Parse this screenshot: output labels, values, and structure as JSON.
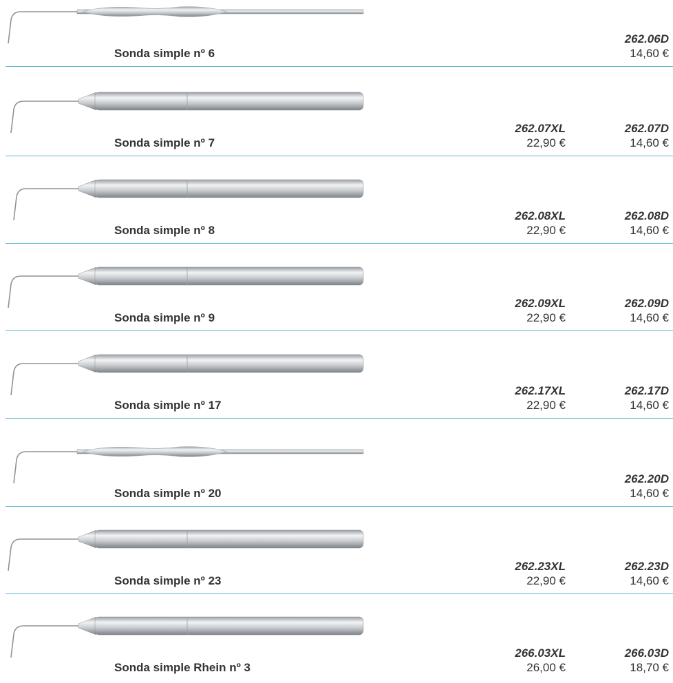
{
  "items": [
    {
      "name": "Sonda simple nº 6",
      "d": {
        "code": "262.06D",
        "price": "14,60 €"
      }
    },
    {
      "name": "Sonda simple nº 7",
      "xl": {
        "code": "262.07XL",
        "price": "22,90 €"
      },
      "d": {
        "code": "262.07D",
        "price": "14,60 €"
      }
    },
    {
      "name": "Sonda simple nº 8",
      "xl": {
        "code": "262.08XL",
        "price": "22,90 €"
      },
      "d": {
        "code": "262.08D",
        "price": "14,60 €"
      }
    },
    {
      "name": "Sonda simple nº 9",
      "xl": {
        "code": "262.09XL",
        "price": "22,90 €"
      },
      "d": {
        "code": "262.09D",
        "price": "14,60 €"
      }
    },
    {
      "name": "Sonda simple nº 17",
      "xl": {
        "code": "262.17XL",
        "price": "22,90 €"
      },
      "d": {
        "code": "262.17D",
        "price": "14,60 €"
      }
    },
    {
      "name": "Sonda simple nº 20",
      "d": {
        "code": "262.20D",
        "price": "14,60 €"
      }
    },
    {
      "name": "Sonda simple nº 23",
      "xl": {
        "code": "262.23XL",
        "price": "22,90 €"
      },
      "d": {
        "code": "262.23D",
        "price": "14,60 €"
      }
    },
    {
      "name": "Sonda simple Rhein nº 3",
      "xl": {
        "code": "266.03XL",
        "price": "26,00 €"
      },
      "d": {
        "code": "266.03D",
        "price": "18,70 €"
      }
    }
  ]
}
